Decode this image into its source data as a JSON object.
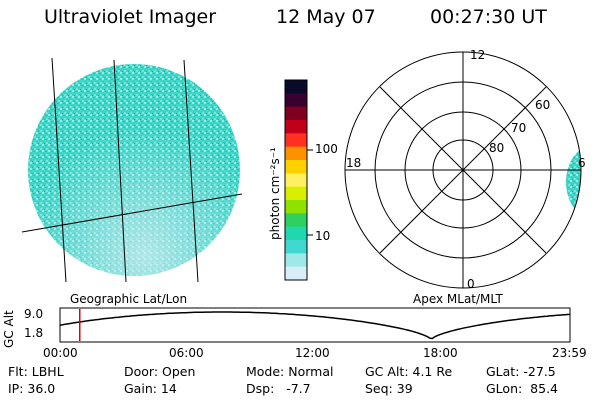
{
  "header": {
    "instrument": "Ultraviolet Imager",
    "date": "12 May 07",
    "time": "00:27:30 UT"
  },
  "image_panel": {
    "caption": "Geographic Lat/Lon"
  },
  "colorbar": {
    "unit_label": "photon cm⁻²s⁻¹",
    "tick_labels": [
      "100",
      "10"
    ],
    "colors": [
      "#0a0a2a",
      "#3a0030",
      "#800020",
      "#c00018",
      "#ff3020",
      "#ff9000",
      "#ffd000",
      "#fff060",
      "#d8f000",
      "#90e000",
      "#30d060",
      "#20d8b0",
      "#40d8d0",
      "#9ee8ea",
      "#d8eef4"
    ]
  },
  "polar_plot": {
    "caption": "Apex MLat/MLT",
    "mlt_labels": {
      "top": "12",
      "left": "18",
      "right": "6",
      "bottom": "0"
    },
    "lat_labels": [
      "60",
      "70",
      "80"
    ]
  },
  "altitude_strip": {
    "ylabel": "GC Alt",
    "yticks": [
      "9.0",
      "1.8"
    ],
    "xticks": [
      "00:00",
      "06:00",
      "12:00",
      "18:00",
      "23:59"
    ],
    "marker_color": "#e00000"
  },
  "footer": {
    "row1": {
      "filter": "Flt: LBHL",
      "door": "Door: Open",
      "mode": "Mode: Normal",
      "gc_alt": "GC Alt: 4.1 Re",
      "glat": "GLat: -27.5"
    },
    "row2": {
      "ip": "IP: 36.0",
      "gain": "Gain: 14",
      "dsp": "Dsp:   -7.7",
      "seq": "Seq: 39",
      "glon": "GLon:  85.4"
    }
  }
}
